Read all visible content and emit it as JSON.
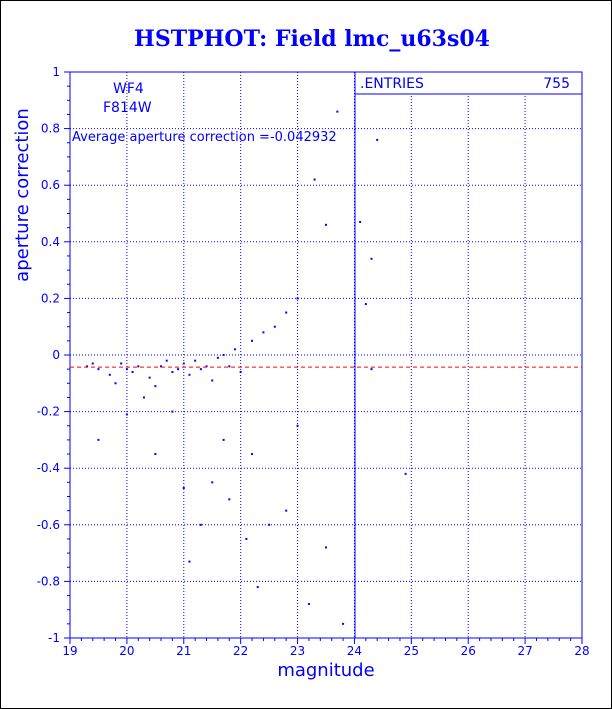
{
  "chart_data": {
    "type": "scatter",
    "title": "HSTPHOT: Field lmc_u63s04",
    "xlabel": "magnitude",
    "ylabel": "aperture correction",
    "xlim": [
      19,
      28
    ],
    "ylim": [
      -1,
      1
    ],
    "x_ticks": [
      "19",
      "20",
      "21",
      "22",
      "23",
      "24",
      "25",
      "26",
      "27",
      "28"
    ],
    "y_ticks": [
      "-1",
      "-0.8",
      "-0.6",
      "-0.4",
      "-0.2",
      "0",
      "0.2",
      "0.4",
      "0.6",
      "0.8",
      "1"
    ],
    "grid": true,
    "chip_label": "WF4",
    "filter_label": "F814W",
    "average_label": "Average aperture correction =",
    "average_value": -0.042932,
    "average_value_text": "-0.042932",
    "stats_box": {
      "label": ".ENTRIES",
      "value": "755"
    },
    "colors": {
      "axes": "#0000ff",
      "title": "#0000ff",
      "points": "#0000ff",
      "average_line": "#ff0000"
    },
    "series": [
      {
        "points_sample": [
          [
            19.3,
            -0.04
          ],
          [
            19.4,
            -0.03
          ],
          [
            19.5,
            -0.05
          ],
          [
            19.7,
            -0.07
          ],
          [
            19.8,
            -0.1
          ],
          [
            19.9,
            -0.03
          ],
          [
            20.0,
            -0.05
          ],
          [
            20.1,
            -0.06
          ],
          [
            20.2,
            -0.04
          ],
          [
            20.4,
            -0.08
          ],
          [
            20.5,
            -0.11
          ],
          [
            20.6,
            -0.04
          ],
          [
            20.7,
            -0.02
          ],
          [
            20.8,
            -0.06
          ],
          [
            20.9,
            -0.05
          ],
          [
            21.0,
            -0.03
          ],
          [
            21.1,
            -0.07
          ],
          [
            21.2,
            -0.02
          ],
          [
            21.3,
            -0.05
          ],
          [
            21.4,
            -0.04
          ],
          [
            21.5,
            -0.09
          ],
          [
            21.6,
            -0.01
          ],
          [
            21.7,
            0.0
          ],
          [
            21.8,
            -0.04
          ],
          [
            21.9,
            0.02
          ],
          [
            22.0,
            -0.06
          ],
          [
            22.2,
            0.05
          ],
          [
            22.4,
            0.08
          ],
          [
            22.6,
            0.1
          ],
          [
            22.8,
            0.15
          ],
          [
            23.0,
            0.2
          ],
          [
            23.3,
            0.62
          ],
          [
            23.5,
            0.46
          ],
          [
            23.7,
            0.86
          ],
          [
            24.1,
            0.47
          ],
          [
            24.4,
            0.76
          ],
          [
            24.3,
            0.34
          ],
          [
            24.2,
            0.18
          ],
          [
            24.3,
            -0.05
          ],
          [
            24.9,
            -0.42
          ],
          [
            19.5,
            -0.3
          ],
          [
            20.0,
            -0.21
          ],
          [
            20.5,
            -0.35
          ],
          [
            21.0,
            -0.47
          ],
          [
            21.1,
            -0.73
          ],
          [
            21.3,
            -0.6
          ],
          [
            21.5,
            -0.45
          ],
          [
            21.8,
            -0.51
          ],
          [
            22.1,
            -0.65
          ],
          [
            22.3,
            -0.82
          ],
          [
            22.5,
            -0.6
          ],
          [
            22.8,
            -0.55
          ],
          [
            23.0,
            -0.25
          ],
          [
            23.2,
            -0.88
          ],
          [
            23.5,
            -0.68
          ],
          [
            23.8,
            -0.95
          ],
          [
            20.3,
            -0.15
          ],
          [
            20.8,
            -0.2
          ],
          [
            21.7,
            -0.3
          ],
          [
            22.2,
            -0.35
          ]
        ]
      }
    ]
  }
}
